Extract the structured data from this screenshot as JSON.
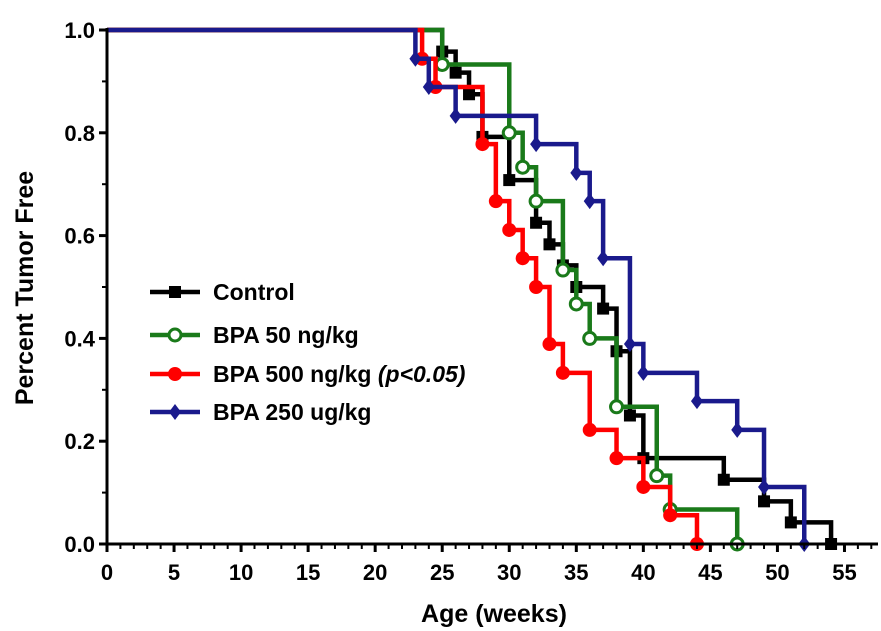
{
  "chart_data": {
    "type": "line",
    "step": true,
    "xlabel": "Age (weeks)",
    "ylabel": "Percent Tumor Free",
    "xlim": [
      0,
      57.5
    ],
    "ylim": [
      0,
      1.0
    ],
    "x_ticks": [
      "0",
      "5",
      "10",
      "15",
      "20",
      "25",
      "30",
      "35",
      "40",
      "45",
      "50",
      "55"
    ],
    "y_ticks": [
      "0.0",
      "0.2",
      "0.4",
      "0.6",
      "0.8",
      "1.0"
    ],
    "legend_position": "center-left",
    "series": [
      {
        "name": "Control",
        "label_suffix": "",
        "color": "#000000",
        "marker": "square",
        "points": [
          [
            0,
            1.0
          ],
          [
            25,
            0.958
          ],
          [
            26,
            0.917
          ],
          [
            27,
            0.875
          ],
          [
            28,
            0.792
          ],
          [
            30,
            0.708
          ],
          [
            32,
            0.625
          ],
          [
            33,
            0.583
          ],
          [
            34,
            0.542
          ],
          [
            35,
            0.5
          ],
          [
            37,
            0.458
          ],
          [
            38,
            0.375
          ],
          [
            39,
            0.25
          ],
          [
            40,
            0.167
          ],
          [
            46,
            0.125
          ],
          [
            49,
            0.083
          ],
          [
            51,
            0.042
          ],
          [
            54,
            0.0
          ]
        ]
      },
      {
        "name": "BPA 50 ng/kg",
        "label_suffix": "",
        "color": "#1a7a1a",
        "marker": "open-circle",
        "points": [
          [
            0,
            1.0
          ],
          [
            25,
            0.933
          ],
          [
            30,
            0.8
          ],
          [
            31,
            0.733
          ],
          [
            32,
            0.667
          ],
          [
            34,
            0.533
          ],
          [
            35,
            0.467
          ],
          [
            36,
            0.4
          ],
          [
            38,
            0.267
          ],
          [
            41,
            0.133
          ],
          [
            42,
            0.067
          ],
          [
            47,
            0.0
          ]
        ]
      },
      {
        "name": "BPA 500 ng/kg ",
        "label_suffix": "(p<0.05)",
        "color": "#ff0000",
        "marker": "filled-circle",
        "points": [
          [
            0,
            1.0
          ],
          [
            23.5,
            0.944
          ],
          [
            24.5,
            0.889
          ],
          [
            28,
            0.778
          ],
          [
            29,
            0.667
          ],
          [
            30,
            0.611
          ],
          [
            31,
            0.556
          ],
          [
            32,
            0.5
          ],
          [
            33,
            0.389
          ],
          [
            34,
            0.333
          ],
          [
            36,
            0.222
          ],
          [
            38,
            0.167
          ],
          [
            40,
            0.111
          ],
          [
            42,
            0.056
          ],
          [
            44,
            0.0
          ]
        ]
      },
      {
        "name": "BPA 250 ug/kg",
        "label_suffix": "",
        "color": "#1a1a8c",
        "marker": "diamond",
        "points": [
          [
            0,
            1.0
          ],
          [
            23,
            0.944
          ],
          [
            24,
            0.889
          ],
          [
            26,
            0.833
          ],
          [
            32,
            0.778
          ],
          [
            35,
            0.722
          ],
          [
            36,
            0.667
          ],
          [
            37,
            0.556
          ],
          [
            39,
            0.389
          ],
          [
            40,
            0.333
          ],
          [
            44,
            0.278
          ],
          [
            47,
            0.222
          ],
          [
            49,
            0.111
          ],
          [
            52,
            0.0
          ]
        ]
      }
    ]
  }
}
